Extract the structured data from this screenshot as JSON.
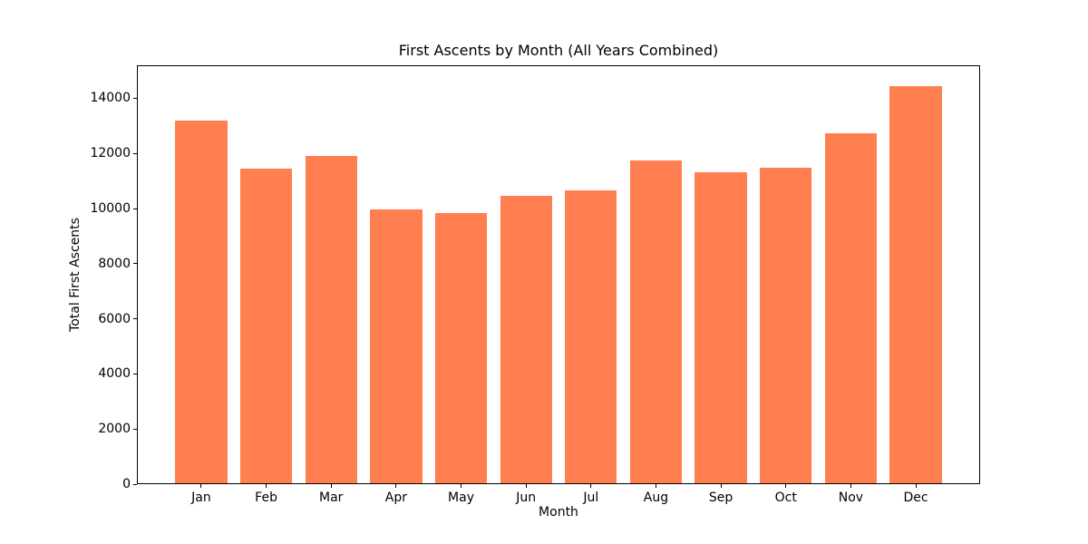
{
  "chart_data": {
    "type": "bar",
    "title": "First Ascents by Month (All Years Combined)",
    "xlabel": "Month",
    "ylabel": "Total First Ascents",
    "categories": [
      "Jan",
      "Feb",
      "Mar",
      "Apr",
      "May",
      "Jun",
      "Jul",
      "Aug",
      "Sep",
      "Oct",
      "Nov",
      "Dec"
    ],
    "values": [
      13230,
      11460,
      11920,
      9970,
      9840,
      10490,
      10680,
      11770,
      11330,
      11490,
      12740,
      14470
    ],
    "bar_color": "#FF7F50",
    "ylim": [
      0,
      15200
    ],
    "yticks": [
      0,
      2000,
      4000,
      6000,
      8000,
      10000,
      12000,
      14000
    ],
    "bar_width_fraction": 0.8,
    "grid": false,
    "legend": "none"
  }
}
